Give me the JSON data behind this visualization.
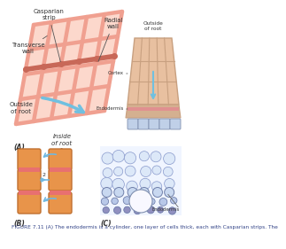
{
  "bg_color": "#ffffff",
  "fig_width": 2.0,
  "fig_height": 2.61,
  "caption": "FIGURE 7.11 (A) The endodermis is a cylinder, one layer of cells thick, each with Casparian strips. The",
  "caption_fontsize": 4.2,
  "caption_color": "#334488",
  "label_A": "(A)",
  "label_B": "(B)",
  "label_C": "(C)",
  "label_fontsize": 5.5,
  "grid_color": "#f0a090",
  "grid_fill": "#fcd8cc",
  "casparian_color": "#c86858",
  "arrow_color": "#70c0e0",
  "cell_wall_lw": 3.5,
  "inset_wall_color": "#c8a080",
  "inset_fill": "#e8c0a0",
  "inset_endo_fill": "#d4b090",
  "inset_endo_strip": "#e09090",
  "panel_B_cell": "#e8944a",
  "panel_B_strip": "#e87070",
  "panel_B_arrow": "#70b8e0"
}
